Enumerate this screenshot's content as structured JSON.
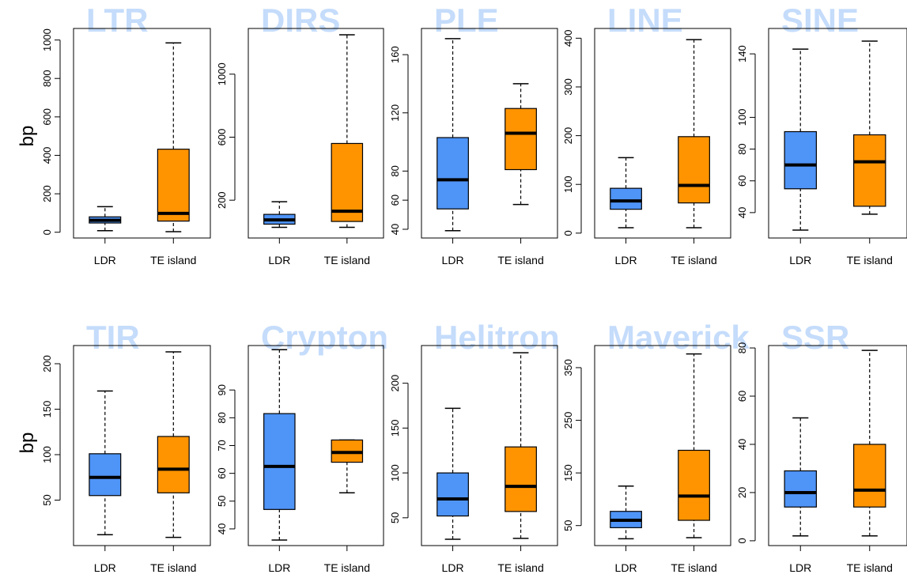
{
  "colors": {
    "ldr": "#4f94f7",
    "te_island": "#ff9400",
    "title": "#c5dcfb",
    "axis": "#000000"
  },
  "row_labels": [
    "bp",
    "bp"
  ],
  "chart_data": [
    {
      "type": "box",
      "title": "LTR",
      "categories": [
        "LDR",
        "TE island"
      ],
      "ylim": [
        -30,
        1060
      ],
      "yticks": [
        0,
        200,
        400,
        600,
        800,
        1000
      ],
      "boxes": [
        {
          "whisker_low": 8,
          "q1": 48,
          "median": 62,
          "q3": 80,
          "whisker_high": 133
        },
        {
          "whisker_low": 3,
          "q1": 58,
          "median": 98,
          "q3": 432,
          "whisker_high": 985
        }
      ]
    },
    {
      "type": "box",
      "title": "DIRS",
      "categories": [
        "LDR",
        "TE island"
      ],
      "ylim": [
        -40,
        1290
      ],
      "yticks": [
        200,
        600,
        1000
      ],
      "boxes": [
        {
          "whisker_low": 28,
          "q1": 48,
          "median": 75,
          "q3": 110,
          "whisker_high": 190
        },
        {
          "whisker_low": 28,
          "q1": 65,
          "median": 130,
          "q3": 560,
          "whisker_high": 1250
        }
      ]
    },
    {
      "type": "box",
      "title": "PLE",
      "categories": [
        "LDR",
        "TE island"
      ],
      "ylim": [
        34,
        178
      ],
      "yticks": [
        40,
        60,
        80,
        120,
        160
      ],
      "boxes": [
        {
          "whisker_low": 39,
          "q1": 54,
          "median": 74,
          "q3": 103,
          "whisker_high": 171
        },
        {
          "whisker_low": 57,
          "q1": 81,
          "median": 106,
          "q3": 123,
          "whisker_high": 140
        }
      ]
    },
    {
      "type": "box",
      "title": "LINE",
      "categories": [
        "LDR",
        "TE island"
      ],
      "ylim": [
        -10,
        420
      ],
      "yticks": [
        0,
        100,
        200,
        300,
        400
      ],
      "boxes": [
        {
          "whisker_low": 11,
          "q1": 49,
          "median": 66,
          "q3": 92,
          "whisker_high": 155
        },
        {
          "whisker_low": 11,
          "q1": 62,
          "median": 98,
          "q3": 198,
          "whisker_high": 397
        }
      ]
    },
    {
      "type": "box",
      "title": "SINE",
      "categories": [
        "LDR",
        "TE island"
      ],
      "ylim": [
        24,
        156
      ],
      "yticks": [
        40,
        60,
        80,
        100,
        140
      ],
      "boxes": [
        {
          "whisker_low": 29,
          "q1": 55,
          "median": 70,
          "q3": 91,
          "whisker_high": 143
        },
        {
          "whisker_low": 39,
          "q1": 44,
          "median": 72,
          "q3": 89,
          "whisker_high": 148
        }
      ]
    },
    {
      "type": "box",
      "title": "TIR",
      "categories": [
        "LDR",
        "TE island"
      ],
      "ylim": [
        0,
        220
      ],
      "yticks": [
        50,
        100,
        150,
        200
      ],
      "boxes": [
        {
          "whisker_low": 12,
          "q1": 55,
          "median": 75,
          "q3": 101,
          "whisker_high": 170
        },
        {
          "whisker_low": 9,
          "q1": 58,
          "median": 84,
          "q3": 120,
          "whisker_high": 213
        }
      ]
    },
    {
      "type": "box",
      "title": "Crypton",
      "categories": [
        "LDR",
        "TE island"
      ],
      "ylim": [
        34,
        106
      ],
      "yticks": [
        40,
        50,
        60,
        70,
        80,
        90
      ],
      "boxes": [
        {
          "whisker_low": 36,
          "q1": 47,
          "median": 62.5,
          "q3": 81.5,
          "whisker_high": 104.5
        },
        {
          "whisker_low": 53,
          "q1": 64,
          "median": 67.5,
          "q3": 72,
          "whisker_high": 72
        }
      ]
    },
    {
      "type": "box",
      "title": "Helitron",
      "categories": [
        "LDR",
        "TE island"
      ],
      "ylim": [
        19,
        242
      ],
      "yticks": [
        50,
        100,
        150,
        200
      ],
      "boxes": [
        {
          "whisker_low": 26,
          "q1": 52,
          "median": 71,
          "q3": 100,
          "whisker_high": 172
        },
        {
          "whisker_low": 27,
          "q1": 57,
          "median": 85,
          "q3": 129,
          "whisker_high": 234
        }
      ]
    },
    {
      "type": "box",
      "title": "Maverick",
      "categories": [
        "LDR",
        "TE island"
      ],
      "ylim": [
        12,
        392
      ],
      "yticks": [
        50,
        150,
        250,
        350
      ],
      "boxes": [
        {
          "whisker_low": 25,
          "q1": 46,
          "median": 60,
          "q3": 77,
          "whisker_high": 125
        },
        {
          "whisker_low": 27,
          "q1": 60,
          "median": 106,
          "q3": 193,
          "whisker_high": 376
        }
      ]
    },
    {
      "type": "box",
      "title": "SSR",
      "categories": [
        "LDR",
        "TE island"
      ],
      "ylim": [
        -2,
        81
      ],
      "yticks": [
        0,
        20,
        40,
        60,
        80
      ],
      "boxes": [
        {
          "whisker_low": 2,
          "q1": 14,
          "median": 20,
          "q3": 29,
          "whisker_high": 51
        },
        {
          "whisker_low": 2,
          "q1": 14,
          "median": 21,
          "q3": 40,
          "whisker_high": 79
        }
      ]
    }
  ]
}
